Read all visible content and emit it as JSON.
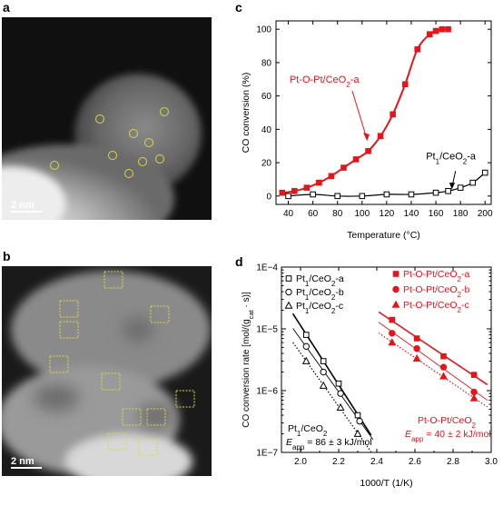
{
  "panels": {
    "a": {
      "letter": "a",
      "scale_label": "2 nm"
    },
    "b": {
      "letter": "b",
      "scale_label": "2 nm"
    },
    "c": {
      "letter": "c"
    },
    "d": {
      "letter": "d"
    }
  },
  "colors": {
    "red": "#e8141b",
    "black": "#000000",
    "marker_yellow": "#d8d845"
  },
  "chart_data": [
    {
      "type": "line",
      "panel": "c",
      "xlabel": "Temperature (°C)",
      "ylabel": "CO conversion (%)",
      "xlim": [
        30,
        205
      ],
      "ylim": [
        -5,
        105
      ],
      "xticks": [
        40,
        60,
        80,
        100,
        120,
        140,
        160,
        180,
        200
      ],
      "yticks": [
        0,
        20,
        40,
        60,
        80,
        100
      ],
      "series": [
        {
          "name": "Pt-O-Pt/CeO2-a",
          "label_main": "Pt-O-Pt/CeO",
          "label_sub": "2",
          "label_end": "-a",
          "color": "#e8141b",
          "marker": "square-filled",
          "x": [
            35,
            45,
            55,
            65,
            75,
            85,
            95,
            105,
            115,
            125,
            135,
            145,
            155,
            160,
            165,
            170
          ],
          "y": [
            2,
            3,
            5,
            8,
            12,
            17,
            22,
            27,
            36,
            49,
            67,
            88,
            97,
            99,
            100,
            100
          ]
        },
        {
          "name": "Pt1/CeO2-a",
          "label_main": "Pt",
          "label_sub1": "1",
          "label_mid": "/CeO",
          "label_sub2": "2",
          "label_end": "-a",
          "color": "#000000",
          "marker": "square-open",
          "x": [
            40,
            60,
            80,
            100,
            120,
            140,
            160,
            170,
            180,
            190,
            200
          ],
          "y": [
            0,
            1,
            0,
            0,
            1,
            1,
            2,
            3,
            5,
            8,
            14
          ]
        }
      ]
    },
    {
      "type": "scatter",
      "panel": "d",
      "xlabel": "1000/T (1/K)",
      "ylabel_main": "CO conversion rate [mol/(g",
      "ylabel_sub": "cat",
      "ylabel_end": " · s)]",
      "xlim": [
        1.9,
        3.0
      ],
      "ylim_log": [
        1e-07,
        0.0001
      ],
      "xticks": [
        2.0,
        2.2,
        2.4,
        2.6,
        2.8,
        3.0
      ],
      "xtick_labels": [
        "2.0",
        "2.2",
        "2.4",
        "2.6",
        "2.8",
        "3.0"
      ],
      "ytick_labels": [
        "1E−7",
        "1E−6",
        "1E−5",
        "1E−4"
      ],
      "series": [
        {
          "name": "Pt1/CeO2-a",
          "group": "Pt1",
          "marker": "square-open",
          "color": "#000000",
          "x": [
            2.03,
            2.12,
            2.2,
            2.3
          ],
          "y": [
            8e-06,
            3e-06,
            1.3e-06,
            4e-07
          ]
        },
        {
          "name": "Pt1/CeO2-b",
          "group": "Pt1",
          "marker": "circle-open",
          "color": "#000000",
          "x": [
            2.03,
            2.12,
            2.21,
            2.31
          ],
          "y": [
            5.2e-06,
            2e-06,
            9e-07,
            3.2e-07
          ]
        },
        {
          "name": "Pt1/CeO2-c",
          "group": "Pt1",
          "marker": "triangle-open",
          "color": "#000000",
          "x": [
            2.03,
            2.12,
            2.21,
            2.3
          ],
          "y": [
            3e-06,
            1.2e-06,
            5.3e-07,
            2e-07
          ]
        },
        {
          "name": "Pt-O-Pt/CeO2-a",
          "group": "PtOPt",
          "marker": "square-filled",
          "color": "#e8141b",
          "x": [
            2.48,
            2.61,
            2.75,
            2.91
          ],
          "y": [
            1.4e-05,
            7e-06,
            3.6e-06,
            1.8e-06
          ]
        },
        {
          "name": "Pt-O-Pt/CeO2-b",
          "group": "PtOPt",
          "marker": "circle-filled",
          "color": "#e8141b",
          "x": [
            2.48,
            2.61,
            2.75,
            2.91
          ],
          "y": [
            8.5e-06,
            4.8e-06,
            2.4e-06,
            9.5e-07
          ]
        },
        {
          "name": "Pt-O-Pt/CeO2-c",
          "group": "PtOPt",
          "marker": "triangle-filled",
          "color": "#e8141b",
          "x": [
            2.48,
            2.61,
            2.75,
            2.91
          ],
          "y": [
            6e-06,
            3.3e-06,
            1.7e-06,
            7.5e-07
          ]
        }
      ],
      "legend_black": [
        {
          "main": "Pt",
          "sub1": "1",
          "mid": "/CeO",
          "sub2": "2",
          "end": "-a",
          "marker": "square-open"
        },
        {
          "main": "Pt",
          "sub1": "1",
          "mid": "/CeO",
          "sub2": "2",
          "end": "-b",
          "marker": "circle-open"
        },
        {
          "main": "Pt",
          "sub1": "1",
          "mid": "/CeO",
          "sub2": "2",
          "end": "-c",
          "marker": "triangle-open"
        }
      ],
      "legend_red": [
        {
          "main": "Pt-O-Pt/CeO",
          "sub": "2",
          "end": "-a",
          "marker": "square-filled"
        },
        {
          "main": "Pt-O-Pt/CeO",
          "sub": "2",
          "end": "-b",
          "marker": "circle-filled"
        },
        {
          "main": "Pt-O-Pt/CeO",
          "sub": "2",
          "end": "-c",
          "marker": "triangle-filled"
        }
      ],
      "annotation_black": {
        "title_main": "Pt",
        "title_sub1": "1",
        "title_mid": "/CeO",
        "title_sub2": "2",
        "e_main": "E",
        "e_sub": "app",
        "e_end": " = 86 ± 3 kJ/mol"
      },
      "annotation_red": {
        "title_main": "Pt-O-Pt/CeO",
        "title_sub": "2",
        "e_main": "E",
        "e_sub": "app",
        "e_end": " = 40 ± 2 kJ/mol"
      }
    }
  ]
}
